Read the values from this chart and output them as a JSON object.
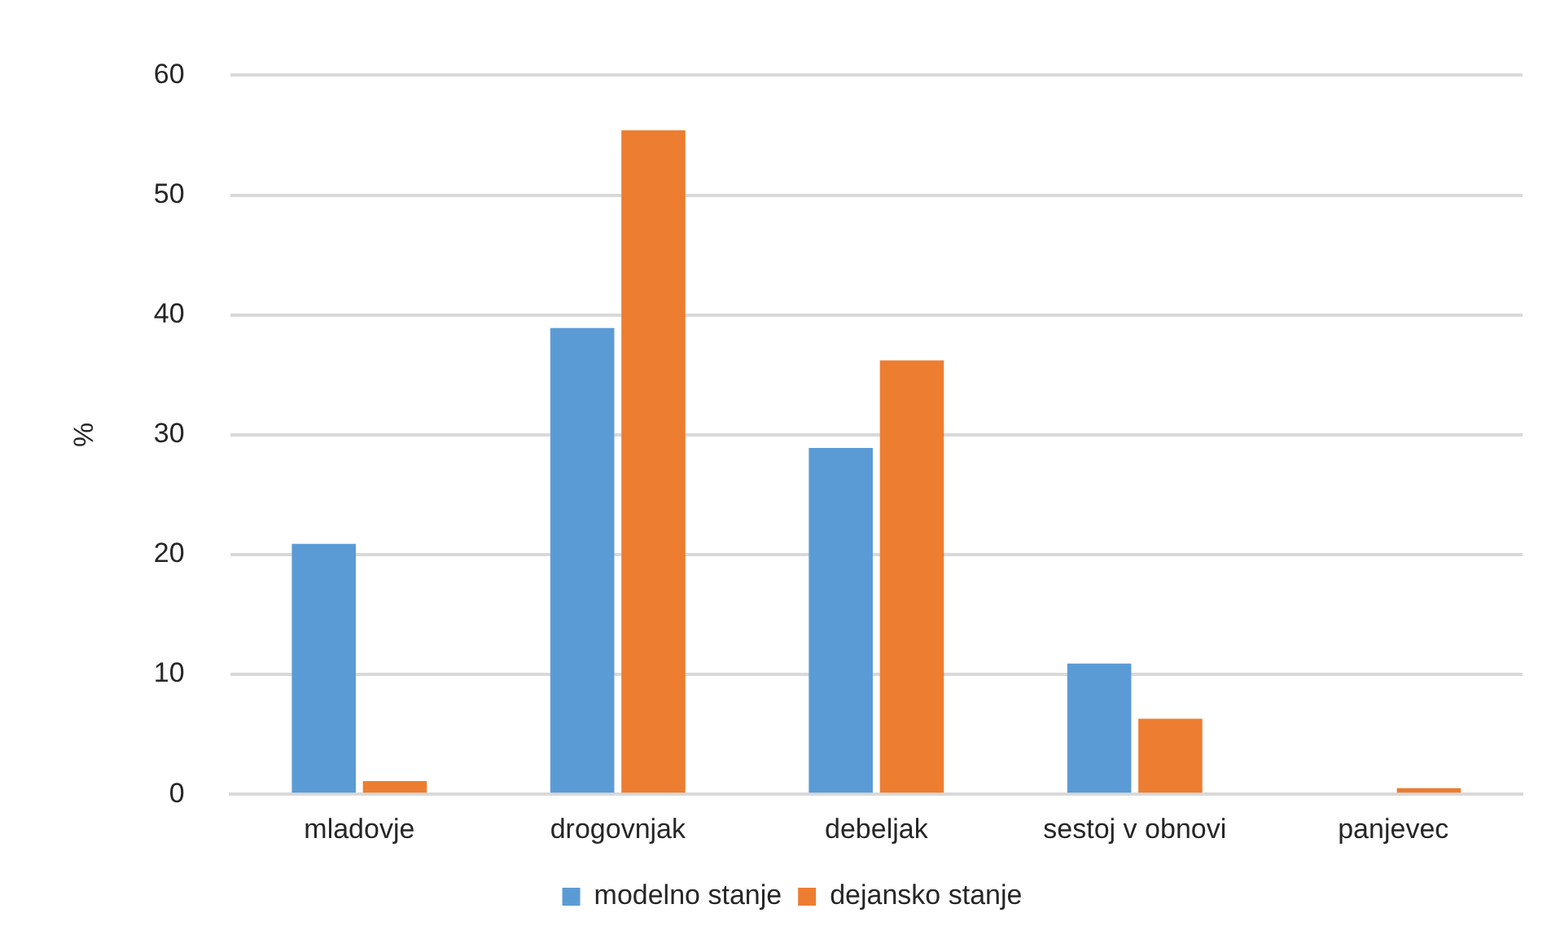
{
  "chart_data": {
    "type": "bar",
    "ylabel": "%",
    "categories": [
      "mladovje",
      "drogovnjak",
      "debeljak",
      "sestoj v obnovi",
      "panjevec"
    ],
    "series": [
      {
        "name": "modelno stanje",
        "color": "#5b9bd5",
        "values": [
          20.9,
          38.9,
          28.9,
          10.9,
          0
        ]
      },
      {
        "name": "dejansko stanje",
        "color": "#ed7d31",
        "values": [
          1.1,
          55.4,
          36.2,
          6.3,
          0.5
        ]
      }
    ],
    "ylim": [
      0,
      60
    ],
    "yticks": [
      0,
      10,
      20,
      30,
      40,
      50,
      60
    ],
    "grid": "y",
    "legend": "bottom"
  }
}
